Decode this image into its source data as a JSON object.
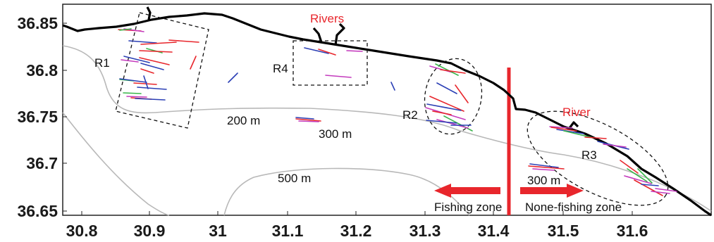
{
  "colors": {
    "coast": "#000000",
    "isobath": "#b8b8b8",
    "divider": "#e8262c",
    "arrow": "#e8262c",
    "label_red": "#e8262c",
    "track_colors": [
      "#e8262c",
      "#2b3fb5",
      "#c43bbd",
      "#39b54a"
    ]
  },
  "axes": {
    "x_ticks": [
      "30.8",
      "30.9",
      "31",
      "31.1",
      "31.2",
      "31.3",
      "31.4",
      "31.5",
      "31.6"
    ],
    "y_ticks": [
      "36.85",
      "36.8",
      "36.75",
      "36.7",
      "36.65"
    ]
  },
  "labels": {
    "rivers": "Rivers",
    "river": "River",
    "r1": "R1",
    "r2": "R2",
    "r3": "R3",
    "r4": "R4",
    "depth_200": "200 m",
    "depth_300_mid": "300 m",
    "depth_300_east": "300 m",
    "depth_500": "500 m",
    "fishing_zone": "Fishing zone",
    "none_fishing_zone": "None-fishing zone"
  }
}
